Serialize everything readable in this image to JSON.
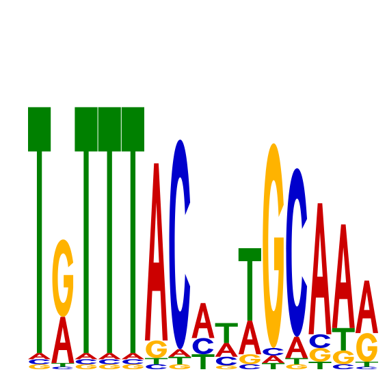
{
  "colors": {
    "A": "#cc0000",
    "C": "#0000cc",
    "G": "#ffb300",
    "T": "#008000"
  },
  "positions": [
    {
      "T": 1.97,
      "A": 0.05,
      "G": 0.04,
      "C": 0.04
    },
    {
      "G": 0.62,
      "A": 0.37,
      "T": 0.03,
      "C": 0.02
    },
    {
      "T": 1.97,
      "A": 0.05,
      "G": 0.04,
      "C": 0.04
    },
    {
      "T": 1.97,
      "A": 0.05,
      "G": 0.04,
      "C": 0.04
    },
    {
      "T": 1.97,
      "A": 0.05,
      "G": 0.04,
      "C": 0.04
    },
    {
      "A": 1.42,
      "G": 0.14,
      "T": 0.05,
      "C": 0.04
    },
    {
      "C": 1.68,
      "T": 0.06,
      "A": 0.06,
      "G": 0.04
    },
    {
      "A": 0.28,
      "T": 0.12,
      "C": 0.13
    },
    {
      "T": 0.16,
      "A": 0.11,
      "C": 0.07,
      "G": 0.03
    },
    {
      "T": 0.58,
      "A": 0.27,
      "G": 0.08,
      "C": 0.04
    },
    {
      "G": 1.64,
      "T": 0.05,
      "A": 0.06,
      "C": 0.06
    },
    {
      "C": 1.35,
      "A": 0.17,
      "T": 0.05,
      "G": 0.04
    },
    {
      "A": 1.05,
      "G": 0.11,
      "C": 0.11,
      "T": 0.06
    },
    {
      "A": 0.83,
      "T": 0.18,
      "G": 0.11,
      "C": 0.04
    },
    {
      "A": 0.42,
      "G": 0.23,
      "T": 0.04,
      "C": 0.02
    }
  ],
  "axis": {
    "ymax": 2
  }
}
